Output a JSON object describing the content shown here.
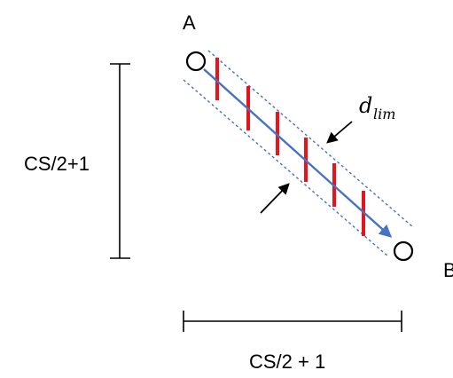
{
  "labels": {
    "point_a": "A",
    "point_b": "B",
    "vertical_dim": "CS/2+1",
    "horizontal_dim": "CS/2 + 1",
    "dlim_main": "d",
    "dlim_sub": "lim"
  },
  "colors": {
    "line": "#000000",
    "corridor": "#4472C4",
    "arrow": "#4472C4",
    "ticks": "#E8141C",
    "circle_stroke": "#000000"
  },
  "icons": {
    "start_point": "circle-node",
    "end_point": "circle-node",
    "pointer_upper": "arrow-pointer",
    "pointer_lower": "arrow-pointer"
  },
  "tick_count": 6
}
